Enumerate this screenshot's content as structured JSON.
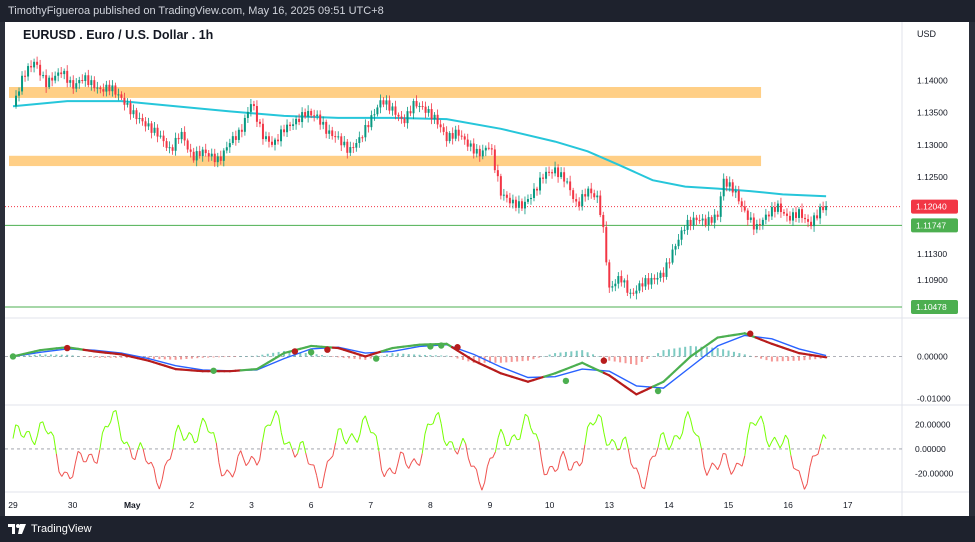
{
  "publisher": "TimothyFigueroa published on TradingView.com, May 16, 2025 09:51 UTC+8",
  "brand": "TradingView",
  "chart_data": [
    {
      "type": "candlestick",
      "title": "EURUSD . Euro / U.S. Dollar . 1h",
      "currency": "USD",
      "ylim": [
        1.104,
        1.146
      ],
      "yticks": [
        "1.14000",
        "1.13500",
        "1.13000",
        "1.12500",
        "1.11300",
        "1.10900"
      ],
      "last_price": "1.12040",
      "support_line": "1.11747",
      "low_line": "1.10478",
      "resistance_zones": [
        [
          1.1373,
          1.139
        ],
        [
          1.1267,
          1.1283
        ]
      ],
      "x_labels": [
        "29",
        "30",
        "May",
        "2",
        "3",
        "6",
        "7",
        "8",
        "9",
        "10",
        "13",
        "14",
        "15",
        "16",
        "17"
      ],
      "x_label_pos": [
        0,
        11,
        22,
        33,
        44,
        55,
        66,
        77,
        88,
        99,
        110,
        121,
        132,
        143,
        154
      ],
      "path": [
        [
          0,
          1.136
        ],
        [
          2,
          1.141
        ],
        [
          4,
          1.143
        ],
        [
          6,
          1.1395
        ],
        [
          9,
          1.1415
        ],
        [
          11,
          1.139
        ],
        [
          13,
          1.1405
        ],
        [
          16,
          1.1385
        ],
        [
          18,
          1.139
        ],
        [
          20,
          1.1372
        ],
        [
          22,
          1.135
        ],
        [
          24,
          1.1335
        ],
        [
          27,
          1.1315
        ],
        [
          29,
          1.129
        ],
        [
          31,
          1.132
        ],
        [
          33,
          1.128
        ],
        [
          35,
          1.129
        ],
        [
          38,
          1.1275
        ],
        [
          40,
          1.1305
        ],
        [
          42,
          1.132
        ],
        [
          44,
          1.1368
        ],
        [
          46,
          1.1315
        ],
        [
          48,
          1.13
        ],
        [
          50,
          1.1325
        ],
        [
          52,
          1.1335
        ],
        [
          54,
          1.135
        ],
        [
          56,
          1.1345
        ],
        [
          58,
          1.132
        ],
        [
          60,
          1.131
        ],
        [
          62,
          1.129
        ],
        [
          64,
          1.131
        ],
        [
          66,
          1.134
        ],
        [
          68,
          1.137
        ],
        [
          70,
          1.1355
        ],
        [
          72,
          1.1335
        ],
        [
          74,
          1.1365
        ],
        [
          76,
          1.1355
        ],
        [
          78,
          1.134
        ],
        [
          80,
          1.131
        ],
        [
          82,
          1.132
        ],
        [
          84,
          1.13
        ],
        [
          86,
          1.1285
        ],
        [
          88,
          1.13
        ],
        [
          90,
          1.1225
        ],
        [
          92,
          1.121
        ],
        [
          94,
          1.1205
        ],
        [
          96,
          1.1225
        ],
        [
          98,
          1.1255
        ],
        [
          100,
          1.126
        ],
        [
          102,
          1.1245
        ],
        [
          104,
          1.1205
        ],
        [
          106,
          1.123
        ],
        [
          108,
          1.1215
        ],
        [
          109,
          1.116
        ],
        [
          110,
          1.1075
        ],
        [
          112,
          1.1095
        ],
        [
          114,
          1.1065
        ],
        [
          116,
          1.1085
        ],
        [
          118,
          1.109
        ],
        [
          120,
          1.11
        ],
        [
          122,
          1.114
        ],
        [
          124,
          1.1175
        ],
        [
          126,
          1.1185
        ],
        [
          128,
          1.118
        ],
        [
          130,
          1.119
        ],
        [
          131,
          1.1245
        ],
        [
          133,
          1.123
        ],
        [
          135,
          1.1195
        ],
        [
          137,
          1.117
        ],
        [
          139,
          1.119
        ],
        [
          141,
          1.1205
        ],
        [
          143,
          1.1185
        ],
        [
          145,
          1.1195
        ],
        [
          147,
          1.1175
        ],
        [
          149,
          1.12
        ],
        [
          150,
          1.1204
        ]
      ],
      "ma_path": [
        [
          0,
          1.136
        ],
        [
          10,
          1.1368
        ],
        [
          20,
          1.1368
        ],
        [
          30,
          1.136
        ],
        [
          40,
          1.1352
        ],
        [
          50,
          1.1345
        ],
        [
          60,
          1.1342
        ],
        [
          70,
          1.1342
        ],
        [
          80,
          1.134
        ],
        [
          90,
          1.1325
        ],
        [
          100,
          1.1305
        ],
        [
          106,
          1.129
        ],
        [
          112,
          1.1268
        ],
        [
          118,
          1.1245
        ],
        [
          124,
          1.1235
        ],
        [
          130,
          1.1232
        ],
        [
          136,
          1.1228
        ],
        [
          142,
          1.1223
        ],
        [
          150,
          1.122
        ]
      ]
    },
    {
      "type": "line",
      "panel": "MACD",
      "ylim": [
        -0.012,
        0.007
      ],
      "yticks": [
        "0.00000",
        "-0.01000"
      ],
      "macd": [
        [
          0,
          0.0
        ],
        [
          5,
          0.0015
        ],
        [
          10,
          0.0022
        ],
        [
          15,
          0.0012
        ],
        [
          20,
          0.0005
        ],
        [
          25,
          -0.001
        ],
        [
          30,
          -0.003
        ],
        [
          35,
          -0.0035
        ],
        [
          40,
          -0.0035
        ],
        [
          45,
          -0.003
        ],
        [
          50,
          0.0008
        ],
        [
          55,
          0.0025
        ],
        [
          60,
          0.002
        ],
        [
          65,
          0.0
        ],
        [
          70,
          0.002
        ],
        [
          75,
          0.0028
        ],
        [
          80,
          0.003
        ],
        [
          85,
          -0.001
        ],
        [
          90,
          -0.004
        ],
        [
          95,
          -0.006
        ],
        [
          100,
          -0.004
        ],
        [
          105,
          -0.0015
        ],
        [
          110,
          -0.0045
        ],
        [
          115,
          -0.009
        ],
        [
          120,
          -0.006
        ],
        [
          125,
          0.0
        ],
        [
          130,
          0.0045
        ],
        [
          135,
          0.0055
        ],
        [
          140,
          0.003
        ],
        [
          145,
          0.0008
        ],
        [
          150,
          -0.0002
        ]
      ],
      "signal": [
        [
          0,
          0.0
        ],
        [
          5,
          0.001
        ],
        [
          10,
          0.0018
        ],
        [
          15,
          0.0015
        ],
        [
          20,
          0.0008
        ],
        [
          25,
          -0.0005
        ],
        [
          30,
          -0.0022
        ],
        [
          35,
          -0.0032
        ],
        [
          40,
          -0.0034
        ],
        [
          45,
          -0.0032
        ],
        [
          50,
          -0.0005
        ],
        [
          55,
          0.0018
        ],
        [
          60,
          0.0022
        ],
        [
          65,
          0.0008
        ],
        [
          70,
          0.0012
        ],
        [
          75,
          0.0024
        ],
        [
          80,
          0.0028
        ],
        [
          85,
          0.0005
        ],
        [
          90,
          -0.0025
        ],
        [
          95,
          -0.005
        ],
        [
          100,
          -0.0048
        ],
        [
          105,
          -0.003
        ],
        [
          110,
          -0.0035
        ],
        [
          115,
          -0.007
        ],
        [
          120,
          -0.0075
        ],
        [
          125,
          -0.0025
        ],
        [
          130,
          0.0025
        ],
        [
          135,
          0.005
        ],
        [
          140,
          0.0042
        ],
        [
          145,
          0.0018
        ],
        [
          150,
          0.0002
        ]
      ],
      "cross_points": [
        {
          "x": 0,
          "y": 0.0,
          "color": "#4caf50"
        },
        {
          "x": 10,
          "y": 0.002,
          "color": "#b71c1c"
        },
        {
          "x": 37,
          "y": -0.0034,
          "color": "#4caf50"
        },
        {
          "x": 52,
          "y": 0.0012,
          "color": "#b71c1c"
        },
        {
          "x": 55,
          "y": 0.001,
          "color": "#4caf50"
        },
        {
          "x": 58,
          "y": 0.0016,
          "color": "#b71c1c"
        },
        {
          "x": 67,
          "y": -0.0005,
          "color": "#4caf50"
        },
        {
          "x": 77,
          "y": 0.0024,
          "color": "#4caf50"
        },
        {
          "x": 79,
          "y": 0.0026,
          "color": "#4caf50"
        },
        {
          "x": 82,
          "y": 0.0022,
          "color": "#b71c1c"
        },
        {
          "x": 102,
          "y": -0.0058,
          "color": "#4caf50"
        },
        {
          "x": 109,
          "y": -0.001,
          "color": "#b71c1c"
        },
        {
          "x": 119,
          "y": -0.0082,
          "color": "#4caf50"
        },
        {
          "x": 136,
          "y": 0.0054,
          "color": "#b71c1c"
        }
      ]
    },
    {
      "type": "line",
      "panel": "Oscillator",
      "ylim": [
        -0.035,
        0.03
      ],
      "yticks": [
        "20.00000",
        "0.00000",
        "-20.00000"
      ],
      "ytick_values": [
        0.02,
        0.0,
        -0.02
      ]
    }
  ]
}
